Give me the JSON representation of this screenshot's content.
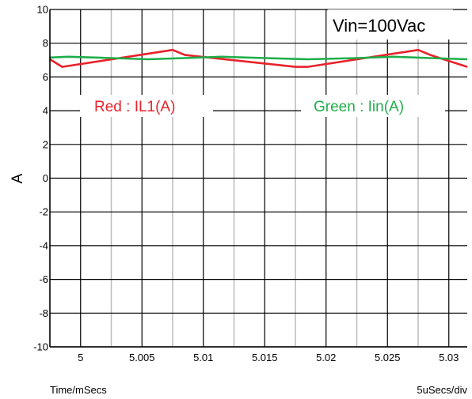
{
  "chart_data": {
    "type": "line",
    "ylabel": "A",
    "xlabel": "Time/mSecs",
    "scale_note": "5uSecs/div",
    "xlim": [
      4.9975,
      5.0315
    ],
    "ylim": [
      -10,
      10
    ],
    "x_ticks": [
      5,
      5.005,
      5.01,
      5.015,
      5.02,
      5.025,
      5.03
    ],
    "x_tick_labels": [
      "5",
      "5.005",
      "5.01",
      "5.015",
      "5.02",
      "5.025",
      "5.03"
    ],
    "y_ticks": [
      -10,
      -8,
      -6,
      -4,
      -2,
      0,
      2,
      4,
      6,
      8,
      10
    ],
    "y_tick_labels": [
      "-10",
      "-8",
      "-6",
      "-4",
      "-2",
      "0",
      "2",
      "4",
      "6",
      "8",
      "10"
    ],
    "grid": true,
    "annotations": {
      "vin": "Vin=100Vac",
      "red": "Red : IL1(A)",
      "green": "Green : Iin(A)"
    },
    "colors": {
      "red": "#e8222a",
      "green": "#1fae4a",
      "grid_major": "#000000",
      "grid_minor": "#bbbbbb"
    },
    "series": [
      {
        "color": "red",
        "x": [
          4.9975,
          4.9985,
          5.0075,
          5.0085,
          5.0175,
          5.0185,
          5.0275,
          5.0285,
          5.0315
        ],
        "y": [
          7.05,
          6.6,
          7.6,
          7.3,
          6.6,
          6.6,
          7.6,
          7.3,
          6.6
        ]
      },
      {
        "color": "green",
        "x": [
          4.9975,
          4.999,
          5.0025,
          5.0055,
          5.0085,
          5.0115,
          5.015,
          5.0185,
          5.0225,
          5.0255,
          5.0285,
          5.0315
        ],
        "y": [
          7.15,
          7.2,
          7.12,
          7.05,
          7.12,
          7.2,
          7.12,
          7.05,
          7.12,
          7.2,
          7.12,
          7.05
        ]
      }
    ]
  }
}
